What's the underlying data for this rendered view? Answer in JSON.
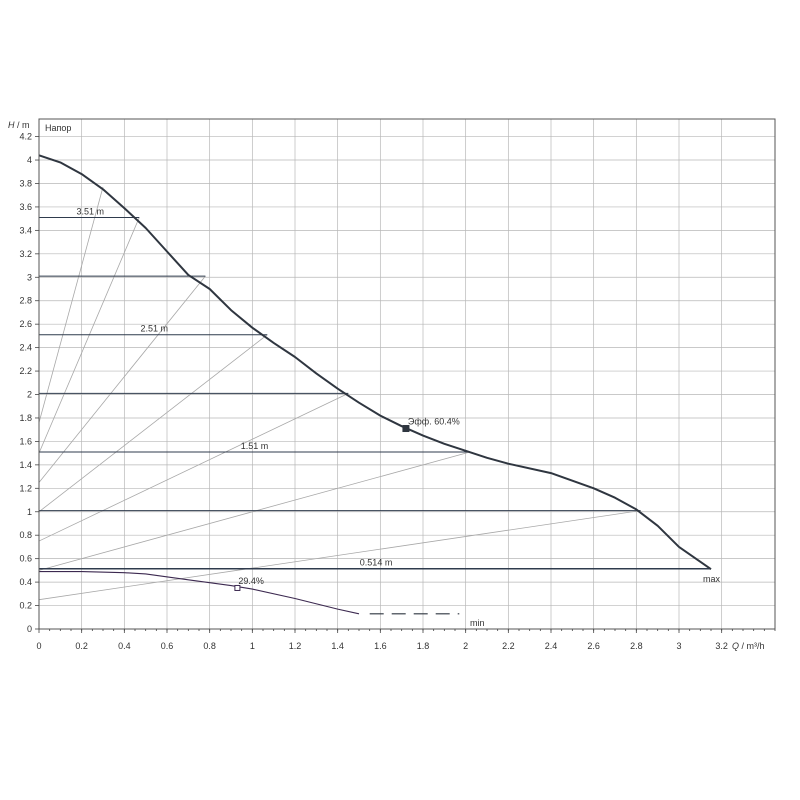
{
  "chart_data": {
    "type": "line",
    "ylabel_symbol": "H",
    "ylabel_unit": " / m",
    "xlabel_symbol": "Q",
    "xlabel_unit": " / m³/h",
    "series_label": "Напор",
    "xlim": [
      0,
      3.45
    ],
    "ylim": [
      0,
      4.35
    ],
    "x_ticks": [
      0,
      0.2,
      0.4,
      0.6,
      0.8,
      1,
      1.2,
      1.4,
      1.6,
      1.8,
      2,
      2.2,
      2.4,
      2.6,
      2.8,
      3,
      3.2
    ],
    "x_tick_labels": [
      "0",
      "0.2",
      "0.4",
      "0.6",
      "0.8",
      "1",
      "1.2",
      "1.4",
      "1.6",
      "1.8",
      "2",
      "2.2",
      "2.4",
      "2.6",
      "2.8",
      "3",
      "3.2"
    ],
    "y_ticks": [
      0,
      0.2,
      0.4,
      0.6,
      0.8,
      1,
      1.2,
      1.4,
      1.6,
      1.8,
      2,
      2.2,
      2.4,
      2.6,
      2.8,
      3,
      3.2,
      3.4,
      3.6,
      3.8,
      4,
      4.2
    ],
    "y_tick_labels": [
      "0",
      "0.2",
      "0.4",
      "0.6",
      "0.8",
      "1",
      "1.2",
      "1.4",
      "1.6",
      "1.8",
      "2",
      "2.2",
      "2.4",
      "2.6",
      "2.8",
      "3",
      "3.2",
      "3.4",
      "3.6",
      "3.8",
      "4",
      "4.2"
    ],
    "grid": true,
    "curves": {
      "max": {
        "label": "max",
        "x": [
          0,
          0.1,
          0.2,
          0.3,
          0.4,
          0.5,
          0.6,
          0.7,
          0.8,
          0.9,
          1.0,
          1.1,
          1.2,
          1.3,
          1.4,
          1.5,
          1.6,
          1.7,
          1.8,
          1.9,
          2.0,
          2.1,
          2.2,
          2.4,
          2.6,
          2.7,
          2.8,
          2.9,
          3.0,
          3.15
        ],
        "y": [
          4.04,
          3.98,
          3.88,
          3.75,
          3.59,
          3.42,
          3.22,
          3.02,
          2.9,
          2.72,
          2.57,
          2.44,
          2.32,
          2.18,
          2.05,
          1.93,
          1.82,
          1.73,
          1.65,
          1.58,
          1.52,
          1.46,
          1.41,
          1.33,
          1.2,
          1.12,
          1.02,
          0.88,
          0.7,
          0.51
        ]
      },
      "min": {
        "label": "min",
        "x": [
          0,
          0.2,
          0.4,
          0.5,
          0.7,
          0.9,
          1.0,
          1.2,
          1.4,
          1.5
        ],
        "y": [
          0.49,
          0.49,
          0.48,
          0.47,
          0.42,
          0.37,
          0.34,
          0.26,
          0.17,
          0.13
        ]
      },
      "min_extension": {
        "x": [
          1.55,
          1.97
        ],
        "y": [
          0.13,
          0.13
        ]
      }
    },
    "constant_pressure_levels": [
      {
        "y": 3.51,
        "x_end": 0.47,
        "label": "3.51 m",
        "label_x": 0.24
      },
      {
        "y": 3.01,
        "x_end": 0.78,
        "label": ""
      },
      {
        "y": 2.51,
        "x_end": 1.07,
        "label": "2.51 m",
        "label_x": 0.54
      },
      {
        "y": 2.01,
        "x_end": 1.45,
        "label": ""
      },
      {
        "y": 1.51,
        "x_end": 2.02,
        "label": "1.51 m",
        "label_x": 1.01
      },
      {
        "y": 1.01,
        "x_end": 2.82,
        "label": ""
      },
      {
        "y": 0.514,
        "x_end": 3.15,
        "label": "0.514 m",
        "label_x": 1.58
      }
    ],
    "proportional_pressure_lines": [
      {
        "x0": 0,
        "y0": 1.76,
        "x1": 0.3,
        "y1": 3.77
      },
      {
        "x0": 0,
        "y0": 1.5,
        "x1": 0.47,
        "y1": 3.51
      },
      {
        "x0": 0,
        "y0": 1.25,
        "x1": 0.78,
        "y1": 3.01
      },
      {
        "x0": 0,
        "y0": 1.0,
        "x1": 1.07,
        "y1": 2.51
      },
      {
        "x0": 0,
        "y0": 0.75,
        "x1": 1.45,
        "y1": 2.01
      },
      {
        "x0": 0,
        "y0": 0.5,
        "x1": 2.02,
        "y1": 1.51
      },
      {
        "x0": 0,
        "y0": 0.25,
        "x1": 2.82,
        "y1": 1.01
      }
    ],
    "points": [
      {
        "name": "efficiency-point-max",
        "x": 1.72,
        "y": 1.71,
        "label": "Эфф.  60.4%",
        "marker": "filled-square"
      },
      {
        "name": "efficiency-point-min",
        "x": 0.93,
        "y": 0.35,
        "label": "29.4%",
        "marker": "open-square"
      }
    ],
    "colors": {
      "curve": "#2f3640",
      "min_curve": "#3c2950",
      "level": "#2f3b4d",
      "proportional": "#a8a8a8",
      "grid": "#b7b7b7"
    }
  }
}
